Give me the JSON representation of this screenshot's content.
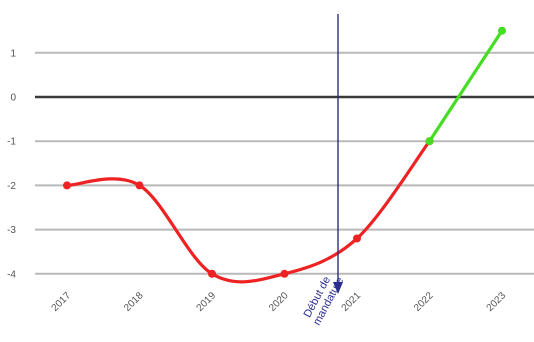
{
  "chart_data": {
    "type": "line",
    "x": [
      "2017",
      "2018",
      "2019",
      "2020",
      "2021",
      "2022",
      "2023"
    ],
    "y_ticks": [
      1,
      0,
      -1,
      -2,
      -3,
      -4
    ],
    "ylim": [
      -4.2,
      1.7
    ],
    "grid": true,
    "series": [
      {
        "color": "#ee2222",
        "points": [
          {
            "x": "2017",
            "y": -2.0
          },
          {
            "x": "2018",
            "y": -2.0
          },
          {
            "x": "2019",
            "y": -4.0
          },
          {
            "x": "2020",
            "y": -4.0
          },
          {
            "x": "2021",
            "y": -3.2
          },
          {
            "x": "2022",
            "y": -1.0
          }
        ]
      },
      {
        "color": "#44dd22",
        "points": [
          {
            "x": "2022",
            "y": -1.0
          },
          {
            "x": "2023",
            "y": 1.5
          }
        ]
      }
    ],
    "annotation": {
      "label_line1": "Début de",
      "label_line2": "mandature",
      "color": "#2b2e8c"
    }
  }
}
